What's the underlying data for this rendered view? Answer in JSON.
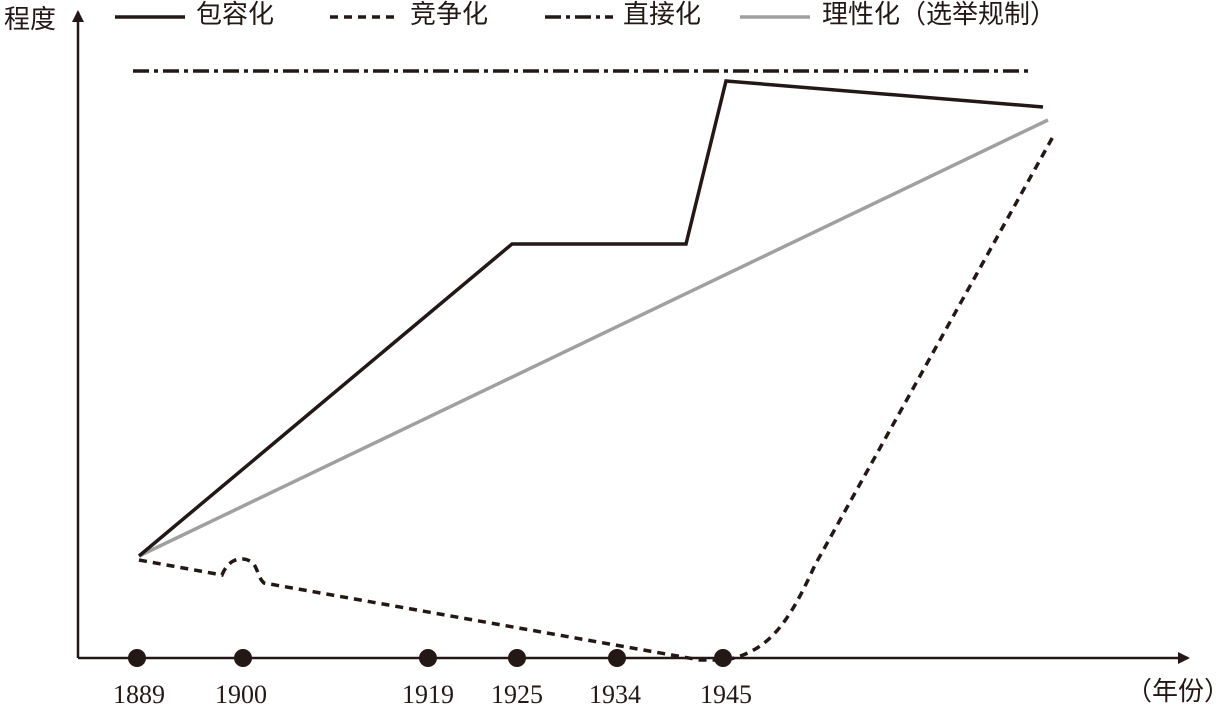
{
  "axes": {
    "y_label": "程度",
    "x_label": "（年份）"
  },
  "legend": [
    "包容化",
    "竞争化",
    "直接化",
    "理性化（选举规制）"
  ],
  "years": [
    "1889",
    "1900",
    "1919",
    "1925",
    "1934",
    "1945"
  ]
}
